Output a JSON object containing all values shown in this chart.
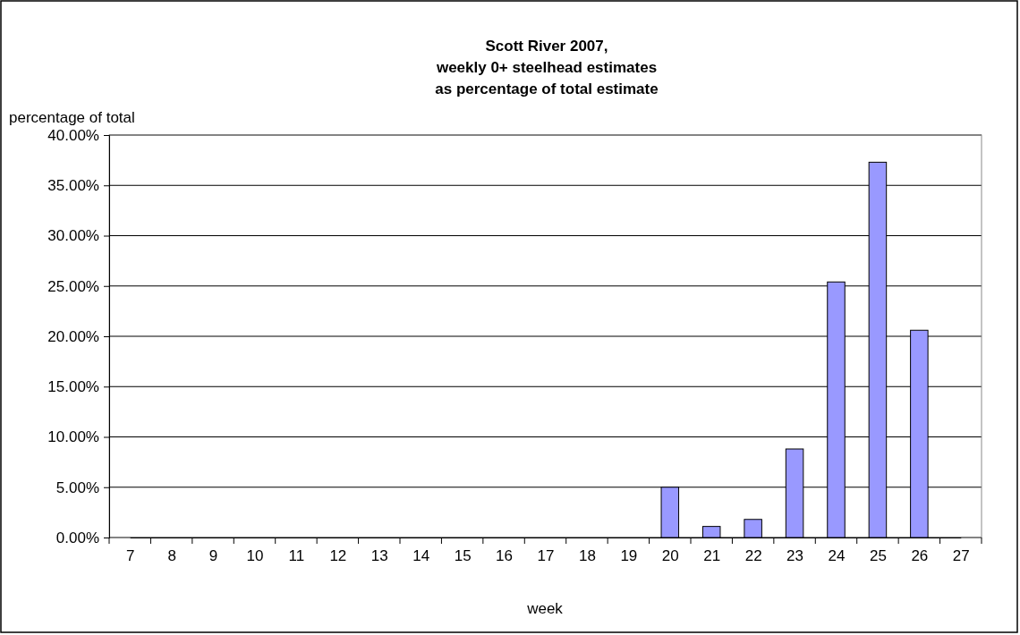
{
  "chart_data": {
    "type": "bar",
    "title": "Scott River 2007,\nweekly 0+ steelhead estimates\nas percentage of total estimate",
    "ylabel": "percentage of total",
    "xlabel": "week",
    "categories": [
      "7",
      "8",
      "9",
      "10",
      "11",
      "12",
      "13",
      "14",
      "15",
      "16",
      "17",
      "18",
      "19",
      "20",
      "21",
      "22",
      "23",
      "24",
      "25",
      "26",
      "27"
    ],
    "values": [
      0,
      0,
      0,
      0,
      0,
      0,
      0,
      0,
      0,
      0,
      0,
      0,
      0,
      5,
      1.1,
      1.8,
      8.8,
      25.4,
      37.3,
      20.6,
      0
    ],
    "color": "#9999ff",
    "ylim": [
      0,
      40
    ],
    "yticks": [
      {
        "value": 0,
        "label": "0.00%"
      },
      {
        "value": 5,
        "label": "5.00%"
      },
      {
        "value": 10,
        "label": "10.00%"
      },
      {
        "value": 15,
        "label": "15.00%"
      },
      {
        "value": 20,
        "label": "20.00%"
      },
      {
        "value": 25,
        "label": "25.00%"
      },
      {
        "value": 30,
        "label": "30.00%"
      },
      {
        "value": 35,
        "label": "35.00%"
      },
      {
        "value": 40,
        "label": "40.00%"
      }
    ],
    "grid": "y"
  }
}
